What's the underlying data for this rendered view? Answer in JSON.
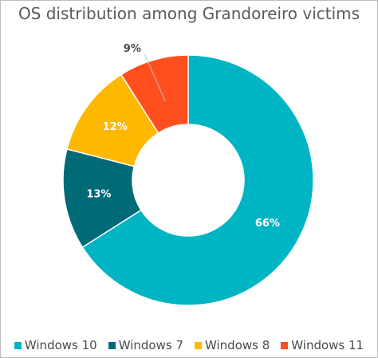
{
  "chart_data": {
    "type": "pie",
    "title": "OS distribution among Grandoreiro victims",
    "donut": true,
    "legend_position": "bottom",
    "categories": [
      "Windows 10",
      "Windows 7",
      "Windows 8",
      "Windows 11"
    ],
    "values": [
      66,
      13,
      12,
      9
    ],
    "labels": [
      "66%",
      "13%",
      "12%",
      "9%"
    ],
    "colors": [
      "#00b5c3",
      "#006a77",
      "#ffb800",
      "#ff4f1f"
    ]
  }
}
